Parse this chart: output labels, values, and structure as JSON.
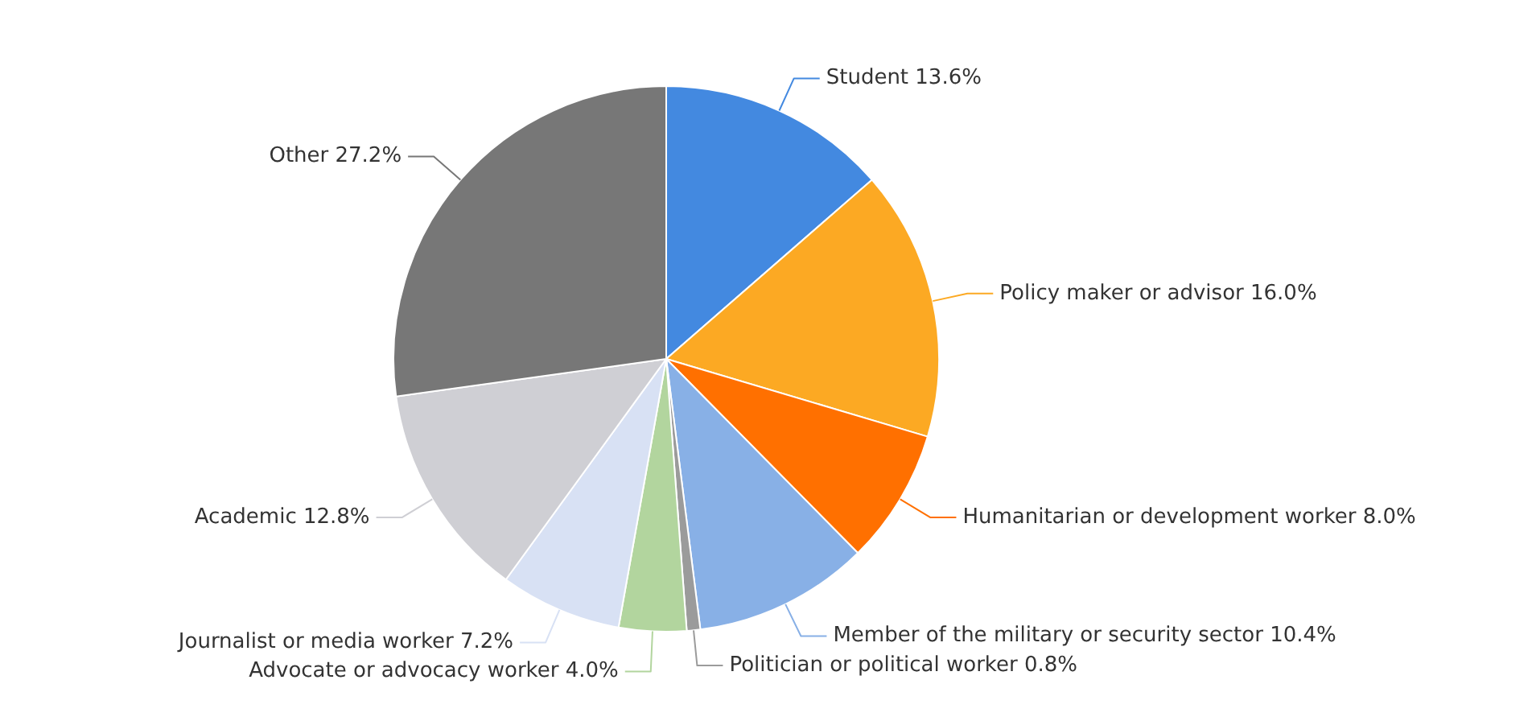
{
  "chart_data": {
    "type": "pie",
    "categories": [
      "Student",
      "Policy maker or advisor",
      "Humanitarian or development worker",
      "Member of the military or security sector",
      "Politician or political worker",
      "Advocate or advocacy worker",
      "Journalist or media worker",
      "Academic",
      "Other"
    ],
    "values": [
      13.6,
      16.0,
      8.0,
      10.4,
      0.8,
      4.0,
      7.2,
      12.8,
      27.2
    ],
    "value_labels": [
      "13.6%",
      "16.0%",
      "8.0%",
      "10.4%",
      "0.8%",
      "4.0%",
      "7.2%",
      "12.8%",
      "27.2%"
    ],
    "colors": [
      "#4389e0",
      "#fca923",
      "#ff7000",
      "#88b0e6",
      "#9b9b9b",
      "#b2d59e",
      "#d8e1f4",
      "#cfcfd4",
      "#777777"
    ],
    "legend": false
  }
}
